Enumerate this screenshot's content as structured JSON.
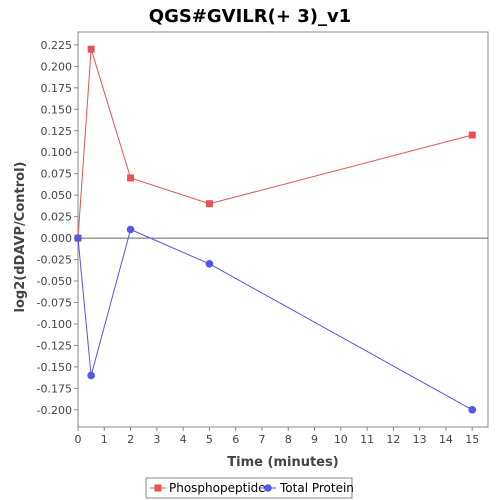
{
  "chart_data": {
    "type": "line",
    "title": "QGS#GVILR(+ 3)_v1",
    "xlabel": "Time (minutes)",
    "ylabel": "log2(dDAVP/Control)",
    "xlim": [
      0,
      15.6
    ],
    "ylim": [
      -0.22,
      0.24
    ],
    "x_ticks": [
      "0",
      "1",
      "2",
      "3",
      "4",
      "5",
      "6",
      "7",
      "8",
      "9",
      "10",
      "11",
      "12",
      "13",
      "14",
      "15"
    ],
    "y_ticks": [
      "0.225",
      "0.200",
      "0.175",
      "0.150",
      "0.125",
      "0.100",
      "0.075",
      "0.050",
      "0.025",
      "0.000",
      "-0.025",
      "-0.050",
      "-0.075",
      "-0.100",
      "-0.125",
      "-0.150",
      "-0.175",
      "-0.200"
    ],
    "grid": false,
    "zero_line": true,
    "legend_position": "bottom",
    "series": [
      {
        "name": "Phosphopeptide",
        "color": "#e05555",
        "marker": "square",
        "x": [
          0,
          0.5,
          2,
          5,
          15
        ],
        "y": [
          0.0,
          0.22,
          0.07,
          0.04,
          0.12
        ]
      },
      {
        "name": "Total Protein",
        "color": "#5555e6",
        "marker": "circle",
        "x": [
          0,
          0.5,
          2,
          5,
          15
        ],
        "y": [
          0.0,
          -0.16,
          0.01,
          -0.03,
          -0.2
        ]
      }
    ]
  }
}
